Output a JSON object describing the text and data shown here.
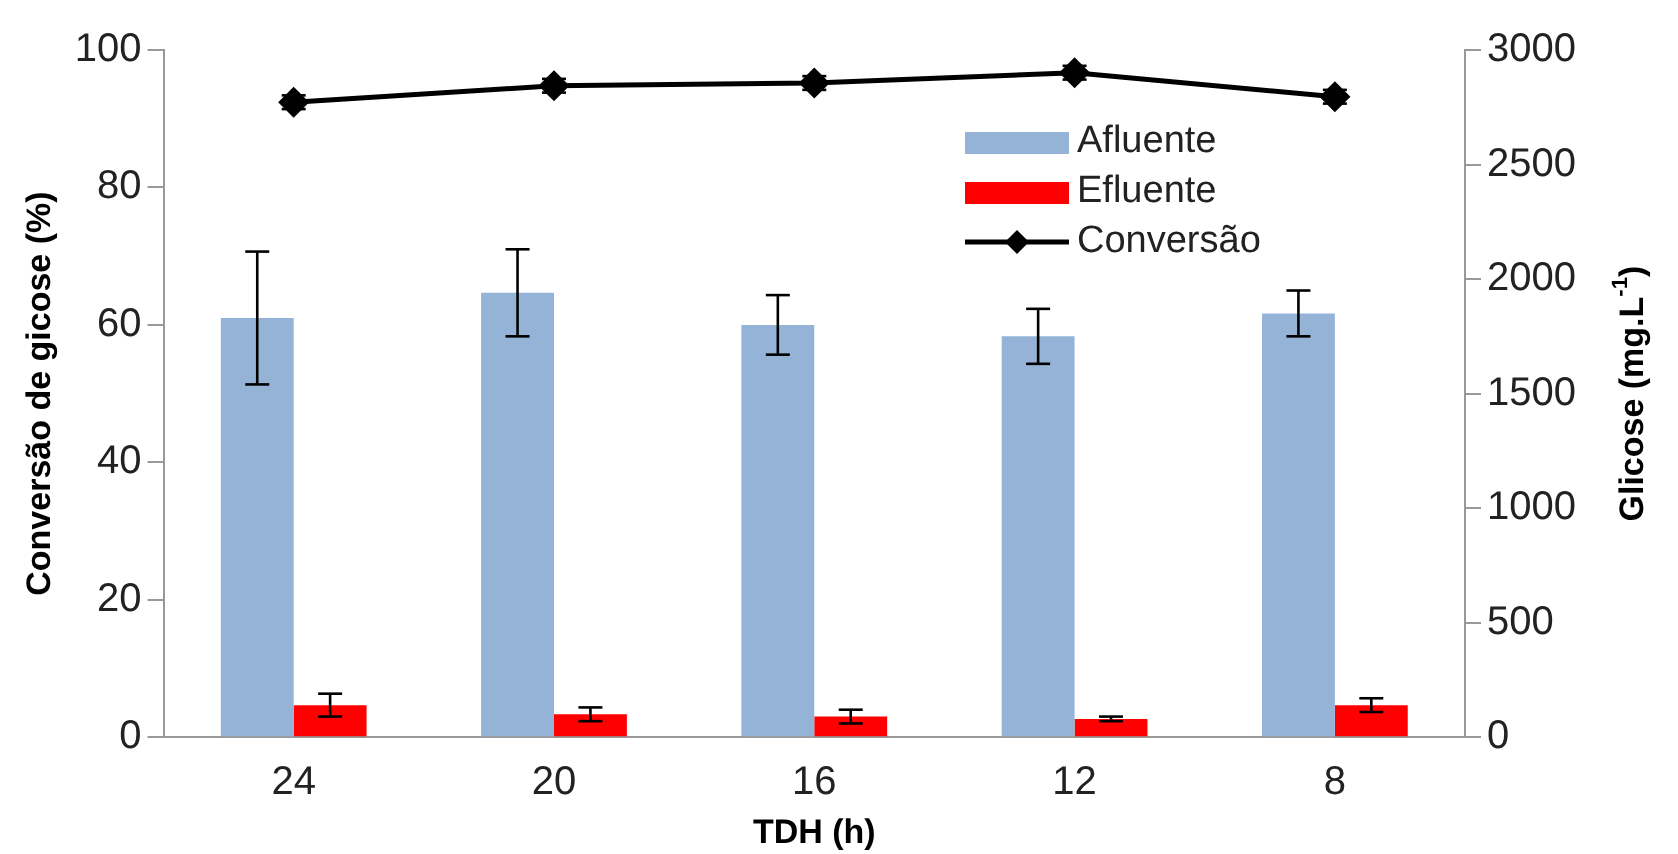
{
  "chart_data": {
    "type": "bar",
    "categories": [
      "24",
      "20",
      "16",
      "12",
      "8"
    ],
    "series": [
      {
        "name": "Afluente",
        "axis": "y2",
        "color": "#95b3d7",
        "values": [
          1830,
          1940,
          1800,
          1750,
          1850
        ],
        "errors": [
          290,
          190,
          130,
          120,
          100
        ]
      },
      {
        "name": "Efluente",
        "axis": "y2",
        "color": "#ff0000",
        "values": [
          140,
          100,
          90,
          80,
          140
        ],
        "errors": [
          50,
          30,
          30,
          10,
          30
        ]
      },
      {
        "name": "Conversão",
        "type": "line",
        "color": "#000000",
        "marker": "diamond",
        "values": [
          92.4,
          94.8,
          95.2,
          96.7,
          93.2
        ],
        "errors": [
          1,
          1,
          1,
          1,
          1
        ]
      }
    ],
    "xlabel": "TDH (h)",
    "ylabel": "Conversão de gicose (%)",
    "y2label": "Glicose (mg.L$^{-1}$)",
    "ylim": [
      0,
      100
    ],
    "yticks": [
      0,
      20,
      40,
      60,
      80,
      100
    ],
    "y2lim": [
      0,
      3000
    ],
    "y2ticks": [
      0,
      500,
      1000,
      1500,
      2000,
      2500,
      3000
    ],
    "grid": false,
    "legend": "top right"
  }
}
